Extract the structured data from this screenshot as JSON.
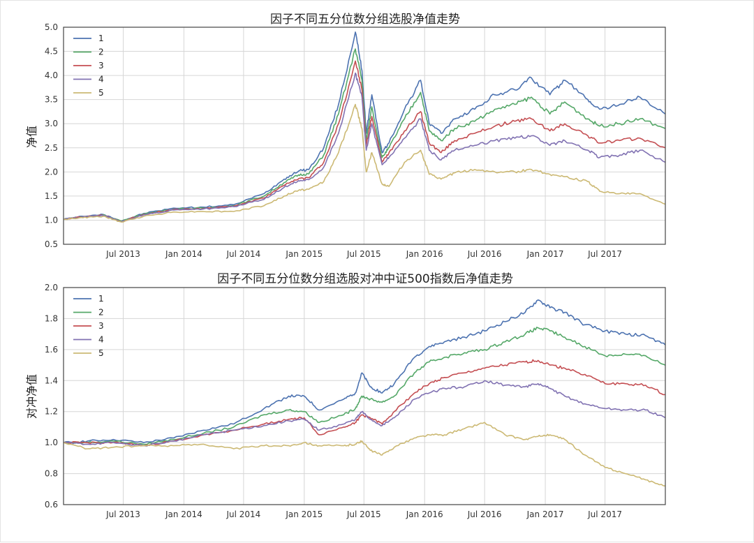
{
  "colors": {
    "1": "#4c72b0",
    "2": "#55a868",
    "3": "#c44e52",
    "4": "#8172b2",
    "5": "#ccb974",
    "grid": "#d6d6d6"
  },
  "chart_data": [
    {
      "type": "line",
      "title": "因子不同五分位数分组选股净值走势",
      "xlabel": "",
      "ylabel": "净值",
      "xlim": [
        "2013-01-01",
        "2017-12-31"
      ],
      "ylim": [
        0.5,
        5.0
      ],
      "yticks": [
        "0.5",
        "1.0",
        "1.5",
        "2.0",
        "2.5",
        "3.0",
        "3.5",
        "4.0",
        "4.5",
        "5.0"
      ],
      "xticks": [
        {
          "date": "2013-07-01",
          "label": "Jul 2013"
        },
        {
          "date": "2014-01-01",
          "label": "Jan 2014"
        },
        {
          "date": "2014-07-01",
          "label": "Jul 2014"
        },
        {
          "date": "2015-01-01",
          "label": "Jan 2015"
        },
        {
          "date": "2015-07-01",
          "label": "Jul 2015"
        },
        {
          "date": "2016-01-01",
          "label": "Jan 2016"
        },
        {
          "date": "2016-07-01",
          "label": "Jul 2016"
        },
        {
          "date": "2017-01-01",
          "label": "Jan 2017"
        },
        {
          "date": "2017-07-01",
          "label": "Jul 2017"
        }
      ],
      "grid": true,
      "legend": "top-left",
      "x": [
        "2013-01-01",
        "2013-03-01",
        "2013-05-01",
        "2013-06-25",
        "2013-09-01",
        "2013-12-01",
        "2014-03-01",
        "2014-06-01",
        "2014-09-01",
        "2014-11-01",
        "2014-12-15",
        "2015-01-15",
        "2015-03-01",
        "2015-04-15",
        "2015-06-05",
        "2015-06-25",
        "2015-07-08",
        "2015-07-25",
        "2015-08-25",
        "2015-09-15",
        "2015-11-01",
        "2015-12-20",
        "2016-01-15",
        "2016-02-20",
        "2016-04-01",
        "2016-06-01",
        "2016-08-01",
        "2016-10-01",
        "2016-11-20",
        "2017-01-15",
        "2017-03-01",
        "2017-05-10",
        "2017-06-15",
        "2017-08-15",
        "2017-10-15",
        "2017-12-31"
      ],
      "series": [
        {
          "name": "1",
          "values": [
            1.02,
            1.08,
            1.12,
            0.98,
            1.14,
            1.25,
            1.27,
            1.32,
            1.55,
            1.85,
            2.02,
            2.05,
            2.5,
            3.4,
            4.9,
            4.1,
            2.8,
            3.6,
            2.4,
            2.6,
            3.3,
            3.9,
            3.0,
            2.8,
            3.1,
            3.3,
            3.6,
            3.7,
            3.95,
            3.6,
            3.9,
            3.5,
            3.3,
            3.4,
            3.55,
            3.2
          ]
        },
        {
          "name": "2",
          "values": [
            1.02,
            1.07,
            1.11,
            0.98,
            1.13,
            1.23,
            1.25,
            1.3,
            1.5,
            1.78,
            1.94,
            1.96,
            2.35,
            3.2,
            4.55,
            3.9,
            2.65,
            3.35,
            2.3,
            2.5,
            3.1,
            3.65,
            2.85,
            2.65,
            2.9,
            3.05,
            3.3,
            3.4,
            3.55,
            3.2,
            3.45,
            3.1,
            2.95,
            3.0,
            3.1,
            2.9
          ]
        },
        {
          "name": "3",
          "values": [
            1.02,
            1.07,
            1.1,
            0.97,
            1.12,
            1.22,
            1.24,
            1.29,
            1.46,
            1.72,
            1.86,
            1.88,
            2.2,
            3.0,
            4.3,
            3.7,
            2.55,
            3.15,
            2.2,
            2.4,
            2.85,
            3.25,
            2.6,
            2.4,
            2.65,
            2.8,
            2.95,
            3.05,
            3.1,
            2.85,
            3.0,
            2.75,
            2.6,
            2.65,
            2.7,
            2.5
          ]
        },
        {
          "name": "4",
          "values": [
            1.02,
            1.07,
            1.1,
            0.97,
            1.11,
            1.21,
            1.23,
            1.28,
            1.43,
            1.68,
            1.82,
            1.84,
            2.1,
            2.8,
            4.05,
            3.55,
            2.45,
            3.0,
            2.15,
            2.3,
            2.7,
            3.1,
            2.45,
            2.25,
            2.45,
            2.55,
            2.65,
            2.7,
            2.75,
            2.55,
            2.65,
            2.45,
            2.3,
            2.35,
            2.45,
            2.2
          ]
        },
        {
          "name": "5",
          "values": [
            1.02,
            1.05,
            1.08,
            0.96,
            1.08,
            1.17,
            1.18,
            1.18,
            1.3,
            1.5,
            1.62,
            1.64,
            1.8,
            2.4,
            3.4,
            2.9,
            2.0,
            2.4,
            1.75,
            1.7,
            2.2,
            2.45,
            1.95,
            1.85,
            1.98,
            2.05,
            2.0,
            2.0,
            2.05,
            1.95,
            1.9,
            1.8,
            1.6,
            1.55,
            1.55,
            1.33
          ]
        }
      ]
    },
    {
      "type": "line",
      "title": "因子不同五分位数分组选股对冲中证500指数后净值走势",
      "xlabel": "",
      "ylabel": "对冲净值",
      "xlim": [
        "2013-01-01",
        "2017-12-31"
      ],
      "ylim": [
        0.6,
        2.0
      ],
      "yticks": [
        "0.6",
        "0.8",
        "1.0",
        "1.2",
        "1.4",
        "1.6",
        "1.8",
        "2.0"
      ],
      "xticks": [
        {
          "date": "2013-07-01",
          "label": "Jul 2013"
        },
        {
          "date": "2014-01-01",
          "label": "Jan 2014"
        },
        {
          "date": "2014-07-01",
          "label": "Jul 2014"
        },
        {
          "date": "2015-01-01",
          "label": "Jan 2015"
        },
        {
          "date": "2015-07-01",
          "label": "Jul 2015"
        },
        {
          "date": "2016-01-01",
          "label": "Jan 2016"
        },
        {
          "date": "2016-07-01",
          "label": "Jul 2016"
        },
        {
          "date": "2017-01-01",
          "label": "Jan 2017"
        },
        {
          "date": "2017-07-01",
          "label": "Jul 2017"
        }
      ],
      "grid": true,
      "legend": "top-left",
      "x": [
        "2013-01-01",
        "2013-03-15",
        "2013-06-01",
        "2013-09-01",
        "2013-12-01",
        "2014-03-01",
        "2014-06-01",
        "2014-09-01",
        "2014-11-15",
        "2015-01-01",
        "2015-02-15",
        "2015-05-01",
        "2015-06-05",
        "2015-06-25",
        "2015-07-20",
        "2015-08-25",
        "2015-10-01",
        "2015-12-01",
        "2016-01-15",
        "2016-03-01",
        "2016-05-01",
        "2016-07-01",
        "2016-09-01",
        "2016-11-01",
        "2016-12-10",
        "2017-01-15",
        "2017-03-01",
        "2017-05-01",
        "2017-07-01",
        "2017-09-01",
        "2017-11-01",
        "2017-12-31"
      ],
      "series": [
        {
          "name": "1",
          "values": [
            1.0,
            1.01,
            1.02,
            1.0,
            1.03,
            1.08,
            1.12,
            1.22,
            1.3,
            1.3,
            1.21,
            1.28,
            1.32,
            1.45,
            1.36,
            1.32,
            1.38,
            1.55,
            1.62,
            1.65,
            1.68,
            1.72,
            1.78,
            1.84,
            1.92,
            1.87,
            1.84,
            1.76,
            1.72,
            1.7,
            1.69,
            1.63
          ]
        },
        {
          "name": "2",
          "values": [
            1.0,
            1.0,
            1.01,
            0.99,
            1.02,
            1.06,
            1.1,
            1.18,
            1.21,
            1.2,
            1.13,
            1.18,
            1.22,
            1.3,
            1.28,
            1.26,
            1.3,
            1.45,
            1.52,
            1.55,
            1.58,
            1.6,
            1.65,
            1.7,
            1.74,
            1.72,
            1.68,
            1.62,
            1.56,
            1.57,
            1.56,
            1.5
          ]
        },
        {
          "name": "3",
          "values": [
            1.0,
            1.0,
            1.0,
            0.98,
            1.01,
            1.05,
            1.08,
            1.12,
            1.15,
            1.16,
            1.05,
            1.1,
            1.13,
            1.18,
            1.16,
            1.12,
            1.2,
            1.32,
            1.38,
            1.42,
            1.45,
            1.48,
            1.5,
            1.52,
            1.53,
            1.5,
            1.48,
            1.44,
            1.38,
            1.38,
            1.37,
            1.31
          ]
        },
        {
          "name": "4",
          "values": [
            1.0,
            0.99,
            1.0,
            0.98,
            1.01,
            1.05,
            1.08,
            1.11,
            1.14,
            1.15,
            1.08,
            1.12,
            1.15,
            1.2,
            1.15,
            1.11,
            1.16,
            1.28,
            1.32,
            1.35,
            1.36,
            1.4,
            1.37,
            1.36,
            1.38,
            1.35,
            1.3,
            1.25,
            1.22,
            1.21,
            1.21,
            1.16
          ]
        },
        {
          "name": "5",
          "values": [
            1.0,
            0.96,
            0.97,
            0.98,
            0.98,
            0.99,
            0.96,
            0.98,
            0.98,
            1.0,
            0.98,
            0.98,
            0.99,
            1.01,
            0.95,
            0.92,
            0.97,
            1.03,
            1.05,
            1.05,
            1.09,
            1.13,
            1.05,
            1.02,
            1.04,
            1.05,
            1.02,
            0.92,
            0.84,
            0.8,
            0.76,
            0.72
          ]
        }
      ]
    }
  ]
}
